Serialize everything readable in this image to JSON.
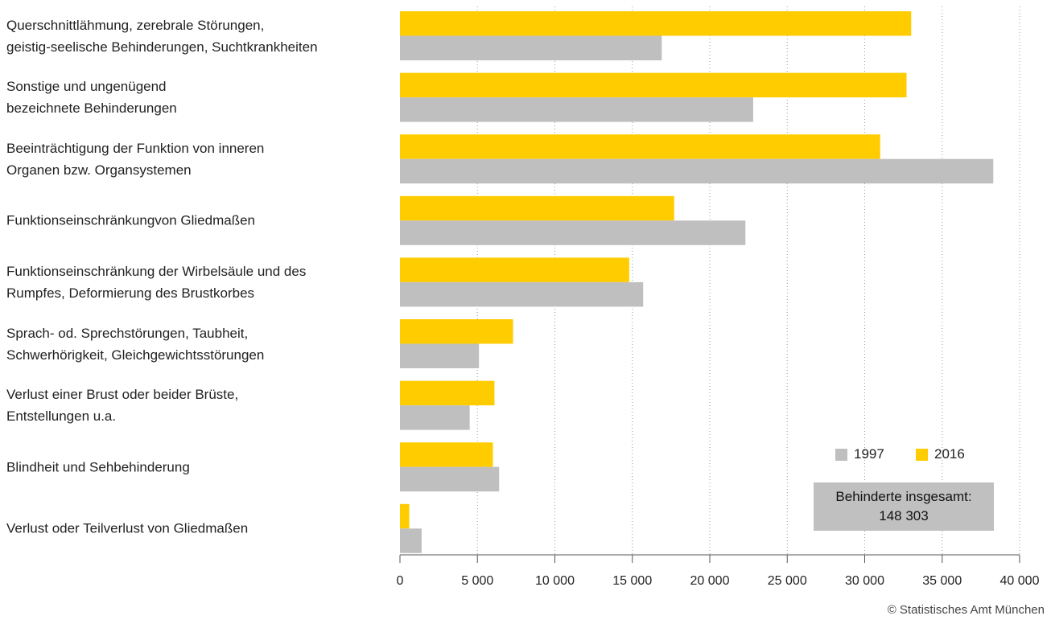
{
  "chart_data": {
    "type": "hbar",
    "categories": [
      "Querschnittlähmung, zerebrale Störungen,\ngeistig-seelische Behinderungen, Suchtkrankheiten",
      "Sonstige und ungenügend\nbezeichnete Behinderungen",
      "Beeinträchtigung der Funktion von inneren\nOrganen bzw. Organsystemen",
      "Funktionseinschränkungvon Gliedmaßen",
      "Funktionseinschränkung der Wirbelsäule und des\nRumpfes, Deformierung des Brustkorbes",
      "Sprach- od. Sprechstörungen, Taubheit,\nSchwerhörigkeit, Gleichgewichtsstörungen",
      "Verlust einer Brust oder beider Brüste,\nEntstellungen u.a.",
      "Blindheit und Sehbehinderung",
      "Verlust oder Teilverlust von Gliedmaßen"
    ],
    "series": [
      {
        "name": "1997",
        "color": "#bfbfbf",
        "values": [
          16900,
          22800,
          38300,
          22300,
          15700,
          5100,
          4500,
          6400,
          1400
        ]
      },
      {
        "name": "2016",
        "color": "#ffcc00",
        "values": [
          33000,
          32700,
          31000,
          17700,
          14800,
          7300,
          6100,
          6000,
          600
        ]
      }
    ],
    "xlim": [
      0,
      40000
    ],
    "xticks": [
      0,
      {
        "value": 5000,
        "label": "5 000"
      },
      {
        "value": 10000,
        "label": "10 000"
      },
      {
        "value": 15000,
        "label": "15 000"
      },
      {
        "value": 20000,
        "label": "20 000"
      },
      {
        "value": 25000,
        "label": "25 000"
      },
      {
        "value": 30000,
        "label": "30 000"
      },
      {
        "value": 35000,
        "label": "35 000"
      },
      {
        "value": 40000,
        "label": "40 000"
      }
    ],
    "grid": true,
    "legend": "lower right",
    "annotation": "Behinderte insgesamt:\n148 303",
    "source": "© Statistisches Amt München"
  }
}
